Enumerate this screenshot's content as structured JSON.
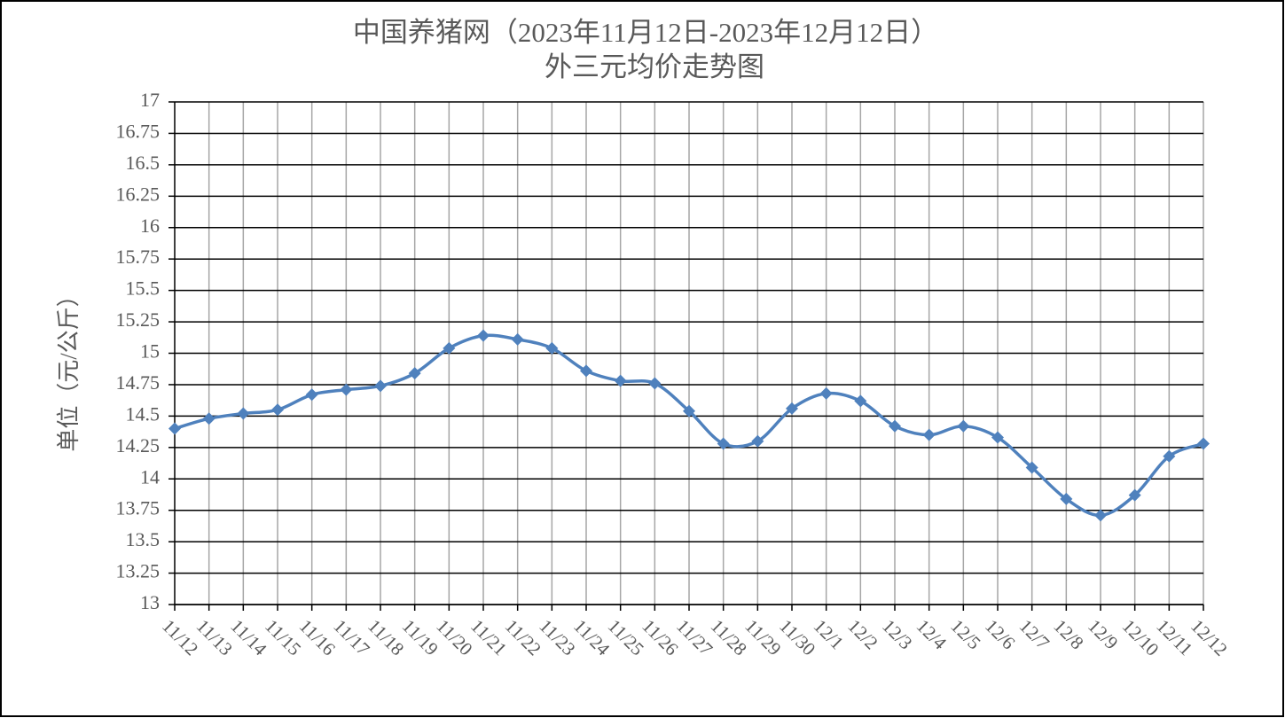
{
  "chart_data": {
    "type": "line",
    "title": "中国养猪网（2023年11月12日-2023年12月12日）",
    "subtitle": "外三元均价走势图",
    "y_label": "单位（元/公斤）",
    "categories": [
      "11/12",
      "11/13",
      "11/14",
      "11/15",
      "11/16",
      "11/17",
      "11/18",
      "11/19",
      "11/20",
      "11/21",
      "11/22",
      "11/23",
      "11/24",
      "11/25",
      "11/26",
      "11/27",
      "11/28",
      "11/29",
      "11/30",
      "12/1",
      "12/2",
      "12/3",
      "12/4",
      "12/5",
      "12/6",
      "12/7",
      "12/8",
      "12/9",
      "12/10",
      "12/11",
      "12/12"
    ],
    "values": [
      14.4,
      14.48,
      14.52,
      14.55,
      14.67,
      14.71,
      14.74,
      14.84,
      15.04,
      15.14,
      15.11,
      15.04,
      14.86,
      14.78,
      14.76,
      14.54,
      14.28,
      14.3,
      14.56,
      14.68,
      14.62,
      14.42,
      14.35,
      14.42,
      14.33,
      14.09,
      13.84,
      13.71,
      13.87,
      14.18,
      14.28
    ],
    "color": "#4f81bd",
    "ylim": [
      13,
      17
    ],
    "yticks": [
      13,
      13.25,
      13.5,
      13.75,
      14,
      14.25,
      14.5,
      14.75,
      15,
      15.25,
      15.5,
      15.75,
      16,
      16.25,
      16.5,
      16.75,
      17
    ],
    "grid": true
  }
}
